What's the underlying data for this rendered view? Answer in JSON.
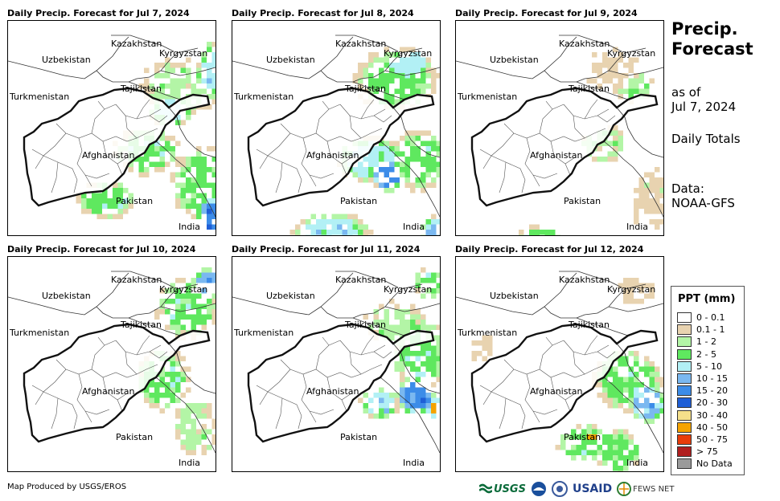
{
  "panels": [
    {
      "title": "Daily Precip. Forecast for Jul 7, 2024"
    },
    {
      "title": "Daily Precip. Forecast for Jul 8, 2024"
    },
    {
      "title": "Daily Precip. Forecast for Jul 9, 2024"
    },
    {
      "title": "Daily Precip. Forecast for Jul 10, 2024"
    },
    {
      "title": "Daily Precip. Forecast for Jul 11, 2024"
    },
    {
      "title": "Daily Precip. Forecast for Jul 12, 2024"
    }
  ],
  "map_labels": {
    "kazakhstan": "Kazakhstan",
    "kyrgyzstan": "Kyrgyzstan",
    "uzbekistan": "Uzbekistan",
    "tajikistan": "Tajikistan",
    "turkmenistan": "Turkmenistan",
    "afghanistan": "Afghanistan",
    "pakistan": "Pakistan",
    "india": "India"
  },
  "side": {
    "title_line1": "Precip.",
    "title_line2": "Forecast",
    "asof_line1": "as of",
    "asof_line2": "Jul 7, 2024",
    "totals": "Daily Totals",
    "data_line1": "Data:",
    "data_line2": "NOAA-GFS"
  },
  "legend": {
    "title": "PPT (mm)",
    "items": [
      {
        "label": "0 - 0.1",
        "color": "#ffffff"
      },
      {
        "label": "0.1 - 1",
        "color": "#e8d3b0"
      },
      {
        "label": "1 - 2",
        "color": "#b3f5a6"
      },
      {
        "label": "2 - 5",
        "color": "#5fe85f"
      },
      {
        "label": "5 - 10",
        "color": "#b2f0f5"
      },
      {
        "label": "10 - 15",
        "color": "#7ab8f0"
      },
      {
        "label": "15 - 20",
        "color": "#3c8ce8"
      },
      {
        "label": "20 - 30",
        "color": "#1f5fd6"
      },
      {
        "label": "30 - 40",
        "color": "#f5e08a"
      },
      {
        "label": "40 - 50",
        "color": "#f5a300"
      },
      {
        "label": "50 - 75",
        "color": "#e83c0a"
      },
      {
        "label": "> 75",
        "color": "#b01e1e"
      },
      {
        "label": "No Data",
        "color": "#9a9a9a"
      }
    ]
  },
  "credit": "Map Produced by USGS/EROS",
  "logos": {
    "usgs": "USGS",
    "usaid": "USAID",
    "fewsnet": "FEWS NET"
  }
}
